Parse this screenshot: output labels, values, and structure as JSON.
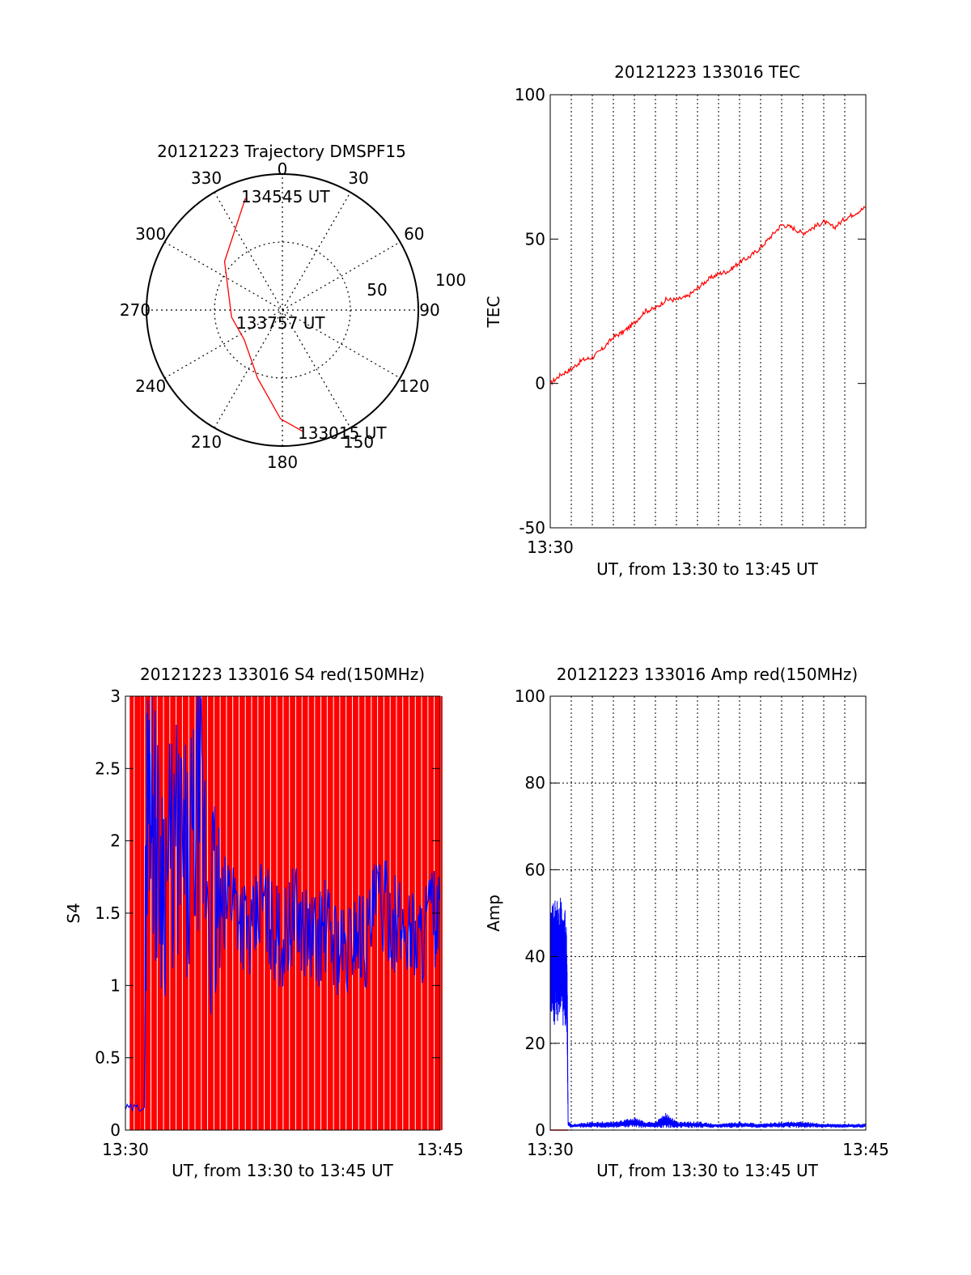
{
  "chart_data": [
    {
      "type": "polar",
      "title": "20121223 Trajectory DMSPF15",
      "azimuth_labels": [
        "0",
        "30",
        "60",
        "90",
        "120",
        "150",
        "180",
        "210",
        "240",
        "270",
        "300",
        "330"
      ],
      "radial_labels": [
        "50",
        "100"
      ],
      "annotations": [
        "134545 UT",
        "133757 UT",
        "133015 UT"
      ],
      "series": [
        {
          "color": "#ff0000",
          "points": [
            {
              "az": 341.7,
              "el": 12
            },
            {
              "az": 310,
              "el": 40
            },
            {
              "az": 262,
              "el": 56
            },
            {
              "az": 232,
              "el": 58
            },
            {
              "az": 200,
              "el": 42
            },
            {
              "az": 181,
              "el": 18
            },
            {
              "az": 170,
              "el": 8
            }
          ]
        }
      ]
    },
    {
      "type": "line",
      "title": "20121223 133016 TEC",
      "xlabel": "UT, from 13:30 to 13:45 UT",
      "ylabel": "TEC",
      "xlim": [
        0,
        15
      ],
      "ylim": [
        -50,
        100
      ],
      "yticks": [
        "-50",
        "0",
        "50",
        "100"
      ],
      "xticks": [
        "13:30"
      ],
      "grid": true,
      "series": [
        {
          "color": "#ff0000",
          "x": [
            0,
            0.5,
            1.0,
            1.5,
            2.0,
            2.5,
            3.0,
            3.5,
            4.0,
            4.5,
            5.0,
            5.5,
            6.0,
            6.5,
            7.0,
            7.5,
            8.0,
            8.5,
            9.0,
            9.5,
            10.0,
            10.5,
            11.0,
            11.5,
            12.0,
            12.5,
            13.0,
            13.5,
            14.0,
            14.5,
            15.0
          ],
          "y": [
            0,
            3,
            5,
            8,
            9,
            12,
            16,
            18,
            21,
            25,
            26,
            29,
            29,
            30,
            33,
            36,
            38,
            39,
            42,
            44,
            47,
            51,
            55,
            54,
            52,
            54,
            56,
            54,
            57,
            59,
            61
          ]
        }
      ]
    },
    {
      "type": "line",
      "title": "20121223 133016 S4 red(150MHz)",
      "xlabel": "UT, from 13:30 to 13:45 UT",
      "ylabel": "S4",
      "xlim": [
        0,
        15
      ],
      "ylim": [
        0,
        3
      ],
      "yticks": [
        "0",
        "0.5",
        "1",
        "1.5",
        "2",
        "2.5",
        "3"
      ],
      "xticks": [
        "13:30",
        "13:45"
      ],
      "series": [
        {
          "color": "#0000ff",
          "x": [
            0,
            0.5,
            0.9,
            1.0,
            1.2,
            1.5,
            2.0,
            2.5,
            3.0,
            3.5,
            4.0,
            4.5,
            5.0,
            5.5,
            6.0,
            6.5,
            7.0,
            7.5,
            8.0,
            8.5,
            9.0,
            9.5,
            10.0,
            10.5,
            11.0,
            11.5,
            12.0,
            12.5,
            13.0,
            13.5,
            14.0,
            14.5,
            15.0
          ],
          "y": [
            0.15,
            0.15,
            0.17,
            2.2,
            2.5,
            1.9,
            1.8,
            2.0,
            1.7,
            2.3,
            1.6,
            1.4,
            1.7,
            1.5,
            1.3,
            1.6,
            1.4,
            1.3,
            1.5,
            1.4,
            1.3,
            1.4,
            1.3,
            1.2,
            1.4,
            1.3,
            1.6,
            1.5,
            1.4,
            1.4,
            1.3,
            1.5,
            1.4
          ]
        },
        {
          "color": "#ff0000",
          "note_values": "vertical spikes spanning 0 to 3",
          "x": [
            0.3,
            0.6,
            0.8,
            1.1,
            1.4,
            1.7,
            2.0,
            2.3,
            2.6,
            2.9,
            3.2,
            3.5,
            3.8,
            4.1,
            4.4,
            4.7,
            5.0,
            5.3,
            5.6,
            5.9,
            6.2,
            6.5,
            6.8,
            7.1,
            7.4,
            7.7,
            8.0,
            8.3,
            8.6,
            8.9,
            9.2,
            9.5,
            9.8,
            10.1,
            10.4,
            10.7,
            11.0,
            11.3,
            11.6,
            11.9,
            12.2,
            12.5,
            12.8,
            13.1,
            13.4,
            13.7,
            14.0,
            14.3,
            14.6,
            14.9
          ]
        }
      ]
    },
    {
      "type": "line",
      "title": "20121223 133016 Amp red(150MHz)",
      "xlabel": "UT, from 13:30 to 13:45 UT",
      "ylabel": "Amp",
      "xlim": [
        0,
        15
      ],
      "ylim": [
        0,
        100
      ],
      "yticks": [
        "0",
        "20",
        "40",
        "60",
        "80",
        "100"
      ],
      "xticks": [
        "13:30",
        "13:45"
      ],
      "grid": true,
      "series": [
        {
          "color": "#0000ff",
          "x": [
            0,
            0.1,
            0.2,
            0.3,
            0.4,
            0.5,
            0.6,
            0.7,
            0.8,
            0.85,
            1.0,
            2.0,
            3.0,
            4.0,
            4.5,
            5.0,
            5.5,
            6.0,
            7.0,
            8.0,
            9.0,
            10.0,
            11.0,
            12.0,
            13.0,
            14.0,
            15.0
          ],
          "y_low": [
            28,
            25,
            24,
            26,
            22,
            27,
            24,
            25,
            18,
            1,
            0.5,
            0.5,
            0.5,
            0.5,
            0.5,
            0.5,
            0.5,
            0.5,
            0.5,
            0.5,
            0.5,
            0.5,
            0.5,
            0.5,
            0.5,
            0.5,
            0.5
          ],
          "y_high": [
            50,
            54,
            53,
            55,
            52,
            54,
            51,
            52,
            45,
            2,
            1.5,
            2,
            2,
            3,
            2,
            2,
            4,
            2,
            2,
            1.5,
            2,
            1.5,
            2,
            2,
            1.5,
            1.5,
            1.5
          ]
        },
        {
          "color": "#ff0000",
          "x": [
            0,
            0.85
          ],
          "y": [
            0,
            0
          ]
        }
      ]
    }
  ]
}
